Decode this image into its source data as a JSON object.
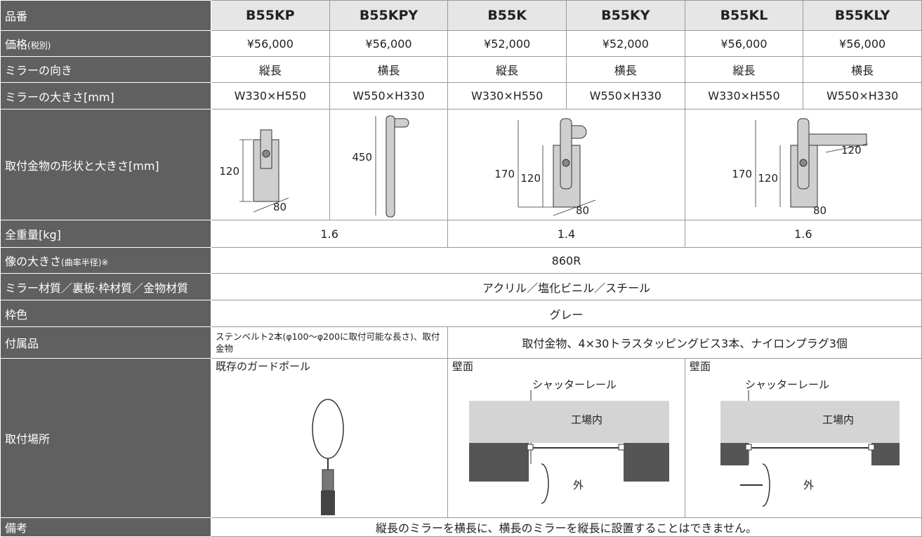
{
  "header": {
    "label": "品番",
    "models": [
      "B55KP",
      "B55KPY",
      "B55K",
      "B55KY",
      "B55KL",
      "B55KLY"
    ]
  },
  "rows": {
    "price": {
      "label": "価格",
      "note": "(税別)",
      "values": [
        "¥56,000",
        "¥56,000",
        "¥52,000",
        "¥52,000",
        "¥56,000",
        "¥56,000"
      ]
    },
    "orientation": {
      "label": "ミラーの向き",
      "values": [
        "縦長",
        "横長",
        "縦長",
        "横長",
        "縦長",
        "横長"
      ]
    },
    "size": {
      "label": "ミラーの大きさ[mm]",
      "values": [
        "W330×H550",
        "W550×H330",
        "W330×H550",
        "W550×H330",
        "W330×H550",
        "W550×H330"
      ]
    },
    "bracket": {
      "label": "取付金物の形状と大きさ[mm]",
      "drawings": [
        {
          "height": "120",
          "width": "80"
        },
        {
          "length": "450"
        },
        {
          "total": "170",
          "height": "120",
          "width": "80"
        },
        {
          "total": "170",
          "height": "120",
          "width": "80",
          "arm": "120"
        }
      ]
    },
    "weight": {
      "label": "全重量[kg]",
      "values": [
        "1.6",
        "1.4",
        "1.6"
      ]
    },
    "image_size": {
      "label": "像の大きさ",
      "note": "(曲率半径)※",
      "value": "860R"
    },
    "materials": {
      "label": "ミラー材質／裏板·枠材質／金物材質",
      "value": "アクリル／塩化ビニル／スチール"
    },
    "frame_color": {
      "label": "枠色",
      "value": "グレー"
    },
    "accessories": {
      "label": "付属品",
      "values": [
        "ステンベルト2本(φ100～φ200に取付可能な長さ)、取付金物",
        "取付金物、4×30トラスタッピングビス3本、ナイロンプラグ3個"
      ]
    },
    "location": {
      "label": "取付場所",
      "places": [
        {
          "title": "既存のガードポール"
        },
        {
          "title": "壁面",
          "rail": "シャッターレール",
          "inside": "工場内",
          "outside": "外"
        },
        {
          "title": "壁面",
          "rail": "シャッターレール",
          "inside": "工場内",
          "outside": "外"
        }
      ]
    },
    "remarks": {
      "label": "備考",
      "value": "縦長のミラーを横長に、横長のミラーを縦長に設置することはできません。"
    }
  }
}
